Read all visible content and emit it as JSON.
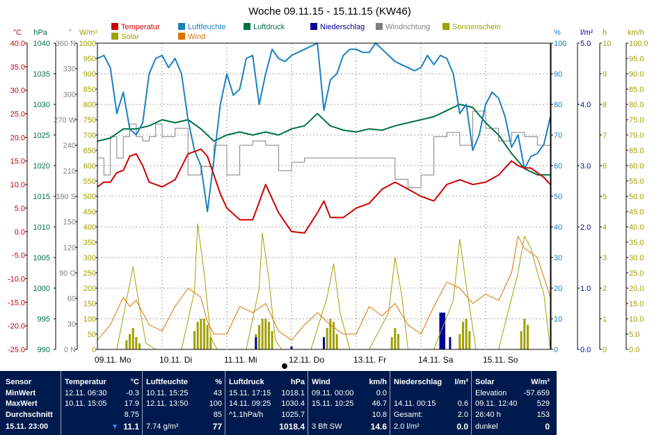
{
  "title": "Woche 09.11.15 - 15.11.15 (KW46)",
  "legend": [
    {
      "label": "Temperatur",
      "color": "#cc0000"
    },
    {
      "label": "Luftfeuchte",
      "color": "#1a80c0"
    },
    {
      "label": "Luftdruck",
      "color": "#007040"
    },
    {
      "label": "Niederschlag",
      "color": "#000099"
    },
    {
      "label": "Windrichtung",
      "color": "#808080"
    },
    {
      "label": "Sonnenschein",
      "color": "#a0a000"
    },
    {
      "label": "Solar",
      "color": "#a0a000"
    },
    {
      "label": "Wind",
      "color": "#e07000"
    }
  ],
  "chart_data": {
    "type": "line",
    "title": "Woche 09.11.15 - 15.11.15 (KW46)",
    "x_labels": [
      "09.11. Mo",
      "10.11. Di",
      "11.11. Mi",
      "12.11. Do",
      "13.11. Fr",
      "14.11. Sa",
      "15.11. So"
    ],
    "x_unit": "day",
    "xlim": [
      0,
      7
    ],
    "grid": true,
    "axes": [
      {
        "unit": "°C",
        "color": "#cc0000",
        "side": "left",
        "range": [
          -25,
          40
        ],
        "ticks": [
          "40.0",
          "35.0",
          "30.0",
          "25.0",
          "20.0",
          "15.0",
          "10.0",
          "5.0",
          "0.0",
          "-5.0",
          "-10.0",
          "-15.0",
          "-20.0",
          "-25.0"
        ]
      },
      {
        "unit": "hPa",
        "color": "#007040",
        "side": "left",
        "range": [
          990,
          1040
        ],
        "ticks": [
          "1040",
          "1035",
          "1030",
          "1025",
          "1020",
          "1015",
          "1010",
          "1005",
          "1000",
          "995",
          "990"
        ]
      },
      {
        "unit": "°",
        "color": "#808080",
        "side": "left",
        "range": [
          0,
          360
        ],
        "ticks": [
          "360 N",
          "330",
          "300",
          "270 W",
          "240",
          "210",
          "180 S",
          "150",
          "120",
          "90 O",
          "60",
          "30",
          "0 N"
        ]
      },
      {
        "unit": "W/m²",
        "color": "#a0a000",
        "side": "left",
        "range": [
          0,
          1000
        ],
        "ticks": [
          "1000",
          "950",
          "900",
          "850",
          "800",
          "750",
          "700",
          "650",
          "600",
          "550",
          "500",
          "450",
          "400",
          "350",
          "300",
          "250",
          "200",
          "150",
          "100",
          "50",
          "0"
        ]
      },
      {
        "unit": "%",
        "color": "#1a80c0",
        "side": "right",
        "range": [
          0,
          100
        ],
        "ticks": [
          "100",
          "90",
          "80",
          "70",
          "60",
          "50",
          "40",
          "30",
          "20",
          "10",
          "0"
        ]
      },
      {
        "unit": "l/m²",
        "color": "#000099",
        "side": "right",
        "range": [
          0,
          5
        ],
        "ticks": [
          "5.0",
          "4.0",
          "3.0",
          "2.0",
          "1.0",
          "0.0"
        ]
      },
      {
        "unit": "h",
        "color": "#a0a000",
        "side": "right",
        "range": [
          0,
          10
        ],
        "ticks": [
          "10",
          "9",
          "8",
          "7",
          "6",
          "5",
          "4",
          "3",
          "2",
          "1",
          "0"
        ]
      },
      {
        "unit": "km/h",
        "color": "#a0a000",
        "side": "right",
        "range": [
          0,
          100
        ],
        "ticks": [
          "100.0",
          "95.0",
          "90.0",
          "85.0",
          "80.0",
          "75.0",
          "70.0",
          "65.0",
          "60.0",
          "55.0",
          "50.0",
          "45.0",
          "40.0",
          "35.0",
          "30.0",
          "25.0",
          "20.0",
          "15.0",
          "10.0",
          "5.0",
          "0.0"
        ]
      }
    ],
    "series": [
      {
        "name": "Temperatur",
        "color": "#cc0000",
        "axis": "°C",
        "x": [
          0,
          0.1,
          0.2,
          0.3,
          0.4,
          0.5,
          0.6,
          0.7,
          0.8,
          1.0,
          1.2,
          1.4,
          1.6,
          1.7,
          1.9,
          2.0,
          2.2,
          2.4,
          2.6,
          2.8,
          3.0,
          3.2,
          3.4,
          3.5,
          3.6,
          3.8,
          4.0,
          4.2,
          4.4,
          4.6,
          4.8,
          5.0,
          5.2,
          5.4,
          5.6,
          5.8,
          6.0,
          6.2,
          6.4,
          6.5,
          6.6,
          6.7,
          6.8,
          6.9,
          7.0
        ],
        "y": [
          9.5,
          10.5,
          10.5,
          12.5,
          13.0,
          16.0,
          16.5,
          14.0,
          10.5,
          9.5,
          11.0,
          16.5,
          17.5,
          16.0,
          8.0,
          5.0,
          2.5,
          2.5,
          10.0,
          4.0,
          0.0,
          -0.3,
          4.0,
          6.5,
          3.0,
          3.0,
          5.0,
          6.0,
          9.0,
          10.5,
          9.0,
          7.5,
          6.5,
          10.0,
          11.0,
          10.0,
          10.5,
          12.0,
          15.0,
          14.0,
          13.5,
          13.5,
          12.5,
          11.5,
          10.0
        ]
      },
      {
        "name": "Luftfeuchte",
        "color": "#1a80c0",
        "axis": "%",
        "x": [
          0,
          0.1,
          0.2,
          0.3,
          0.4,
          0.5,
          0.6,
          0.7,
          0.8,
          0.9,
          1.0,
          1.1,
          1.2,
          1.3,
          1.4,
          1.5,
          1.6,
          1.7,
          1.8,
          1.9,
          2.0,
          2.1,
          2.2,
          2.3,
          2.4,
          2.5,
          2.6,
          2.7,
          2.8,
          2.9,
          3.0,
          3.1,
          3.2,
          3.3,
          3.4,
          3.5,
          3.6,
          3.7,
          3.8,
          3.9,
          4.0,
          4.1,
          4.2,
          4.3,
          4.4,
          4.5,
          4.6,
          4.7,
          4.8,
          4.9,
          5.0,
          5.1,
          5.2,
          5.3,
          5.4,
          5.5,
          5.6,
          5.7,
          5.8,
          5.9,
          6.0,
          6.1,
          6.2,
          6.3,
          6.4,
          6.5,
          6.6,
          6.7,
          6.8,
          6.9,
          7.0
        ],
        "y": [
          95,
          96,
          92,
          77,
          84,
          72,
          70,
          74,
          90,
          95,
          96,
          92,
          95,
          90,
          75,
          65,
          60,
          45,
          62,
          80,
          90,
          83,
          85,
          95,
          96,
          80,
          90,
          98,
          95,
          94,
          96,
          97,
          98,
          99,
          100,
          78,
          88,
          90,
          96,
          98,
          98,
          97,
          97,
          100,
          98,
          96,
          94,
          93,
          92,
          91,
          92,
          96,
          93,
          96,
          95,
          90,
          77,
          80,
          65,
          70,
          80,
          84,
          82,
          76,
          66,
          70,
          59,
          63,
          64,
          67,
          76
        ]
      },
      {
        "name": "Luftdruck",
        "color": "#007040",
        "axis": "hPa",
        "x": [
          0,
          0.2,
          0.4,
          0.6,
          0.8,
          1.0,
          1.2,
          1.4,
          1.6,
          1.8,
          2.0,
          2.2,
          2.4,
          2.6,
          2.8,
          3.0,
          3.2,
          3.4,
          3.6,
          3.8,
          4.0,
          4.2,
          4.4,
          4.6,
          4.8,
          5.0,
          5.2,
          5.4,
          5.6,
          5.8,
          6.0,
          6.2,
          6.4,
          6.6,
          6.8,
          7.0
        ],
        "y": [
          1024.0,
          1024.5,
          1026.0,
          1026.0,
          1026.5,
          1027.5,
          1027.0,
          1027.5,
          1026.0,
          1024.0,
          1025.0,
          1025.5,
          1025.0,
          1025.5,
          1025.0,
          1026.0,
          1026.5,
          1028.5,
          1026.5,
          1025.8,
          1025.5,
          1026.0,
          1025.8,
          1026.5,
          1027.0,
          1027.5,
          1028.0,
          1029.0,
          1030.0,
          1029.5,
          1027.0,
          1025.0,
          1022.0,
          1019.5,
          1018.5,
          1018.5
        ]
      },
      {
        "name": "Windrichtung",
        "color": "#808080",
        "axis": "°",
        "x": [
          0,
          0.1,
          0.2,
          0.3,
          0.4,
          0.5,
          0.6,
          0.7,
          0.8,
          0.9,
          1.0,
          1.2,
          1.4,
          1.6,
          1.8,
          2.0,
          2.2,
          2.4,
          2.6,
          2.8,
          3.0,
          3.2,
          3.4,
          3.6,
          3.8,
          4.0,
          4.2,
          4.4,
          4.6,
          4.8,
          5.0,
          5.2,
          5.4,
          5.6,
          5.8,
          6.0,
          6.2,
          6.4,
          6.6,
          6.8,
          7.0
        ],
        "y": [
          225,
          205,
          250,
          225,
          250,
          265,
          250,
          245,
          250,
          265,
          250,
          260,
          205,
          215,
          240,
          205,
          240,
          245,
          240,
          210,
          220,
          225,
          225,
          225,
          225,
          225,
          225,
          225,
          200,
          190,
          205,
          250,
          255,
          240,
          280,
          260,
          245,
          255,
          250,
          240,
          230
        ]
      },
      {
        "name": "Solar",
        "color": "#a0a000",
        "axis": "W/m²",
        "x": [
          0,
          0.3,
          0.45,
          0.55,
          0.65,
          0.75,
          0.9,
          1.3,
          1.5,
          1.55,
          1.65,
          1.75,
          1.85,
          2.0,
          2.3,
          2.5,
          2.55,
          2.65,
          2.75,
          2.85,
          3.0,
          3.3,
          3.55,
          3.65,
          3.75,
          3.9,
          4.2,
          4.5,
          4.6,
          4.7,
          4.8,
          5.0,
          5.2,
          5.5,
          5.6,
          5.7,
          5.85,
          6.0,
          6.2,
          6.5,
          6.6,
          6.7,
          6.8,
          6.9,
          7.0
        ],
        "y": [
          0,
          0,
          160,
          270,
          140,
          20,
          0,
          0,
          190,
          410,
          250,
          40,
          0,
          0,
          0,
          200,
          380,
          230,
          30,
          0,
          0,
          0,
          170,
          280,
          120,
          0,
          0,
          120,
          300,
          180,
          0,
          0,
          0,
          160,
          360,
          210,
          0,
          0,
          0,
          250,
          370,
          330,
          250,
          180,
          0
        ]
      },
      {
        "name": "Wind",
        "color": "#e07000",
        "axis": "km/h",
        "x": [
          0,
          0.2,
          0.4,
          0.5,
          0.6,
          0.8,
          1.0,
          1.2,
          1.4,
          1.6,
          1.7,
          1.8,
          2.0,
          2.2,
          2.4,
          2.6,
          2.8,
          3.0,
          3.2,
          3.4,
          3.6,
          3.8,
          4.0,
          4.2,
          4.4,
          4.6,
          4.8,
          5.0,
          5.2,
          5.4,
          5.6,
          5.8,
          6.0,
          6.2,
          6.4,
          6.5,
          6.6,
          6.8,
          7.0
        ],
        "y": [
          3,
          8,
          17,
          14,
          16,
          8,
          6,
          14,
          20,
          17,
          9,
          5,
          5,
          14,
          12,
          15,
          6,
          3,
          8,
          12,
          8,
          5,
          5,
          14,
          11,
          15,
          8,
          5,
          14,
          22,
          20,
          15,
          18,
          16,
          25,
          37,
          33,
          30,
          17
        ]
      },
      {
        "name": "Sonnenschein",
        "color": "#a0a000",
        "axis": "h",
        "type": "bar",
        "x": [
          0.45,
          0.5,
          0.55,
          0.6,
          0.65,
          1.5,
          1.55,
          1.6,
          1.65,
          1.7,
          1.75,
          2.45,
          2.5,
          2.55,
          2.6,
          2.65,
          2.7,
          3.5,
          3.55,
          3.6,
          3.65,
          3.7,
          4.55,
          4.6,
          4.65,
          5.6,
          5.65,
          5.7,
          5.75,
          6.55,
          6.6,
          6.65
        ],
        "y": [
          0.3,
          0.5,
          0.7,
          0.4,
          0.2,
          0.6,
          0.9,
          1.0,
          1.0,
          0.8,
          0.4,
          0.5,
          0.8,
          1.0,
          1.0,
          0.9,
          0.6,
          0.4,
          0.7,
          1.0,
          0.9,
          0.5,
          0.4,
          0.7,
          0.5,
          0.5,
          0.9,
          1.0,
          0.6,
          0.6,
          1.0,
          0.8
        ]
      },
      {
        "name": "Niederschlag",
        "color": "#000099",
        "axis": "l/m²",
        "type": "bar",
        "x": [
          2.45,
          3.0,
          3.5,
          5.3,
          5.33,
          5.36,
          5.45
        ],
        "y": [
          0.2,
          0.05,
          0.2,
          0.6,
          0.6,
          0.6,
          0.2
        ]
      }
    ]
  },
  "panel": {
    "sensor": {
      "header": "Sensor",
      "rows": [
        "MinWert",
        "MaxWert",
        "Durchschnitt",
        "15.11. 23:00"
      ]
    },
    "temperatur": {
      "header": "Temperatur",
      "unit": "°C",
      "rows": [
        [
          "12.11.  06:30",
          "-0.3"
        ],
        [
          "10.11.  15:05",
          "17.9"
        ],
        [
          "",
          "8.75"
        ],
        [
          "",
          "11.1"
        ]
      ]
    },
    "luftfeuchte": {
      "header": "Luftfeuchte",
      "unit": "%",
      "rows": [
        [
          "10.11.  15:25",
          "43"
        ],
        [
          "12.11.  13:50",
          "100"
        ],
        [
          "",
          "85"
        ],
        [
          "7.74 g/m³",
          "77"
        ]
      ]
    },
    "luftdruck": {
      "header": "Luftdruck",
      "unit": "hPa",
      "rows": [
        [
          "15.11.  17:15",
          "1018.1"
        ],
        [
          "14.11.  09:25",
          "1030.4"
        ],
        [
          "^1.1hPa/h",
          "1025.7"
        ],
        [
          "",
          "1018.4"
        ]
      ]
    },
    "wind": {
      "header": "Wind",
      "unit": "km/h",
      "rows": [
        [
          "09.11.  00:00",
          "0.0"
        ],
        [
          "15.11.  10:25",
          "46.7"
        ],
        [
          "",
          "10.8"
        ],
        [
          "3 Bft SW",
          "14.6"
        ]
      ]
    },
    "niederschlag": {
      "header": "Niederschlag",
      "unit": "l/m²",
      "rows": [
        [
          "",
          ""
        ],
        [
          "14.11.  00:15",
          "0.6"
        ],
        [
          "Gesamt:",
          "2.0"
        ],
        [
          "2.0 l/m²",
          "0.0"
        ]
      ]
    },
    "solar": {
      "header": "Solar",
      "unit": "W/m²",
      "rows": [
        [
          "Elevation",
          "-57.659"
        ],
        [
          "09.11.  12:40",
          "529"
        ],
        [
          "26:40 h",
          "153"
        ],
        [
          "dunkel",
          "0"
        ]
      ]
    }
  }
}
